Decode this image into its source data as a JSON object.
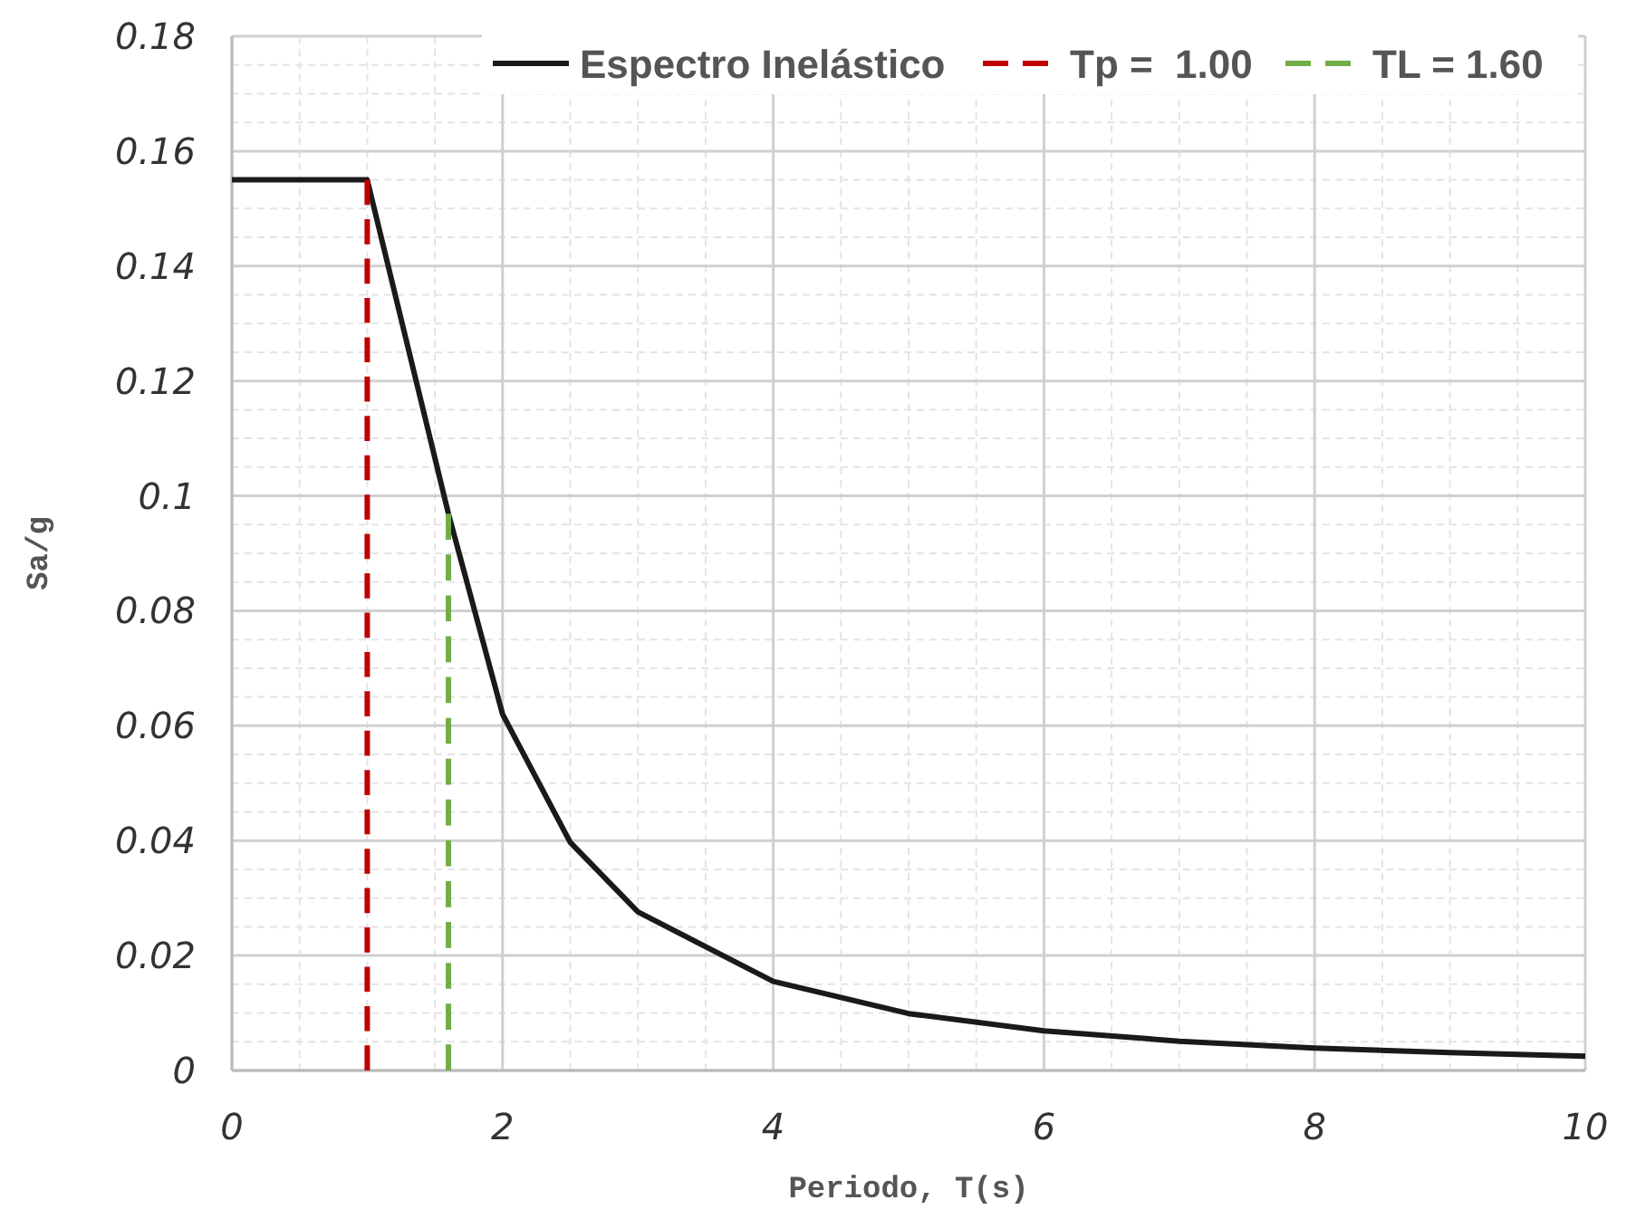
{
  "chart_data": {
    "type": "line",
    "xlabel": "Periodo, T(s)",
    "ylabel": "Sa/g",
    "xlim": [
      0,
      10
    ],
    "xticks": [
      0,
      2,
      4,
      6,
      8,
      10
    ],
    "ylim": [
      0,
      0.18
    ],
    "yticks": [
      0,
      0.02,
      0.04,
      0.06,
      0.08,
      0.1,
      0.12,
      0.14,
      0.16,
      0.18
    ],
    "grid": true,
    "legend": "top right",
    "marker": "none",
    "series": [
      {
        "name": "Espectro Inelástico",
        "color": "#1a1a1a",
        "line_style": "solid",
        "x": [
          0,
          1,
          1.6,
          2,
          2.5,
          3,
          4,
          5,
          6,
          7,
          8,
          9,
          10
        ],
        "values": [
          0.155,
          0.155,
          0.0969,
          0.062,
          0.0397,
          0.0276,
          0.0155,
          0.0099,
          0.0069,
          0.0051,
          0.0039,
          0.0031,
          0.0025
        ]
      },
      {
        "name": "Tp =  1.00",
        "color": "#c00000",
        "line_style": "dashed",
        "x": [
          1,
          1
        ],
        "values": [
          0,
          0.155
        ]
      },
      {
        "name": "TL = 1.60",
        "color": "#70ad47",
        "line_style": "dashed",
        "x": [
          1.6,
          1.6
        ],
        "values": [
          0,
          0.0969
        ]
      }
    ]
  }
}
